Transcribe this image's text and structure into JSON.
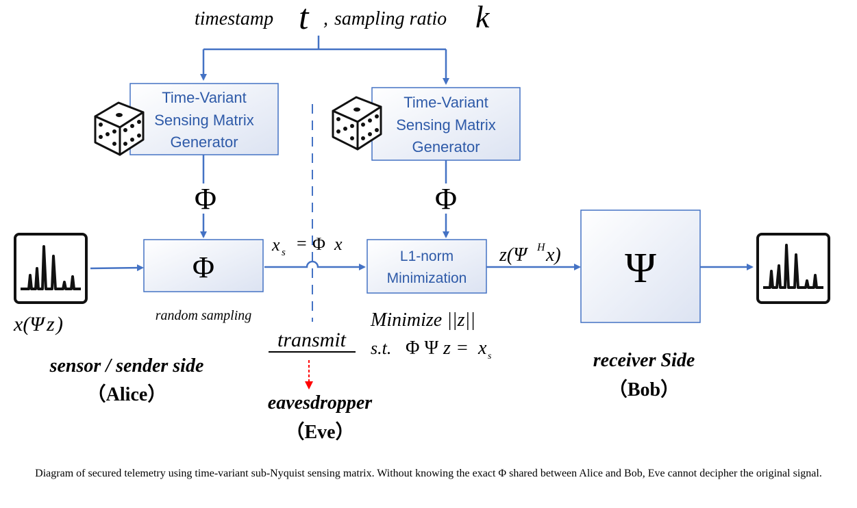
{
  "inputs_header": {
    "timestamp_label": "timestamp",
    "timestamp_symbol": "t",
    "separator": ",",
    "ratio_label": "sampling ratio",
    "ratio_symbol": "k"
  },
  "generator_left": {
    "line1": "Time-Variant",
    "line2": "Sensing Matrix",
    "line3": "Generator"
  },
  "generator_right": {
    "line1": "Time-Variant",
    "line2": "Sensing Matrix",
    "line3": "Generator"
  },
  "phi_symbol": "Φ",
  "psi_symbol": "Ψ",
  "sampling_block": {
    "symbol": "Φ",
    "label": "random sampling"
  },
  "transmitted_signal": {
    "base": "x",
    "subscript": "s",
    "equals": "=",
    "phi": "Φ",
    "x": "x"
  },
  "l1_block": {
    "line1": "L1-norm",
    "line2": "Minimization"
  },
  "recovered_label": {
    "prefix": "z(Ψ",
    "superscript": "H",
    "suffix": "x)"
  },
  "receiver_block": {
    "symbol": "Ψ"
  },
  "input_signal_label": {
    "prefix": "x(Ψ",
    "z": "z",
    "suffix": ")"
  },
  "optimization": {
    "line1": "Minimize ||z||",
    "st": "s.t.",
    "phi_psi": "Φ Ψ",
    "z": "z",
    "equals": "=",
    "x": "x",
    "subscript": "s"
  },
  "transmit_label": "transmit",
  "sender": {
    "title": "sensor / sender side",
    "name": "（Alice）"
  },
  "receiver": {
    "title": "receiver Side",
    "name": "（Bob）"
  },
  "eavesdropper": {
    "title": "eavesdropper",
    "name": "（Eve）"
  },
  "caption": "Diagram of secured telemetry using time-variant sub-Nyquist sensing matrix. Without knowing the exact Φ shared between Alice and Bob, Eve cannot decipher the original signal.",
  "colors": {
    "flow": "#4472C4",
    "box_text": "#2E5AA8",
    "eve_arrow": "#FF0000",
    "box_fill_start": "#FFFFFF",
    "box_fill_end": "#DCE3F2"
  }
}
